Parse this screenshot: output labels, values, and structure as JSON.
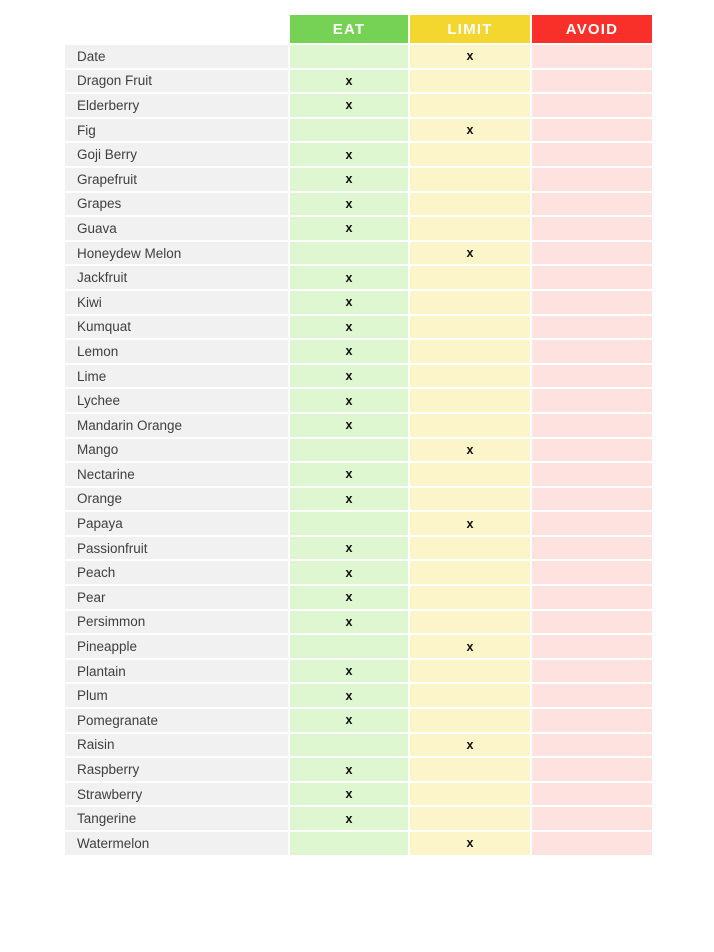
{
  "chart_data": {
    "type": "table",
    "title": "",
    "mark": "x",
    "label_column_bg": "#f1f1f1",
    "columns": [
      {
        "key": "eat",
        "label": "EAT",
        "header_color": "#76d254",
        "cell_color": "#def7d0"
      },
      {
        "key": "limit",
        "label": "LIMIT",
        "header_color": "#f3d62e",
        "cell_color": "#fcf5ca"
      },
      {
        "key": "avoid",
        "label": "AVOID",
        "header_color": "#f93029",
        "cell_color": "#fde2df"
      }
    ],
    "rows": [
      {
        "fruit": "Date",
        "category": "LIMIT"
      },
      {
        "fruit": "Dragon Fruit",
        "category": "EAT"
      },
      {
        "fruit": "Elderberry",
        "category": "EAT"
      },
      {
        "fruit": "Fig",
        "category": "LIMIT"
      },
      {
        "fruit": "Goji Berry",
        "category": "EAT"
      },
      {
        "fruit": "Grapefruit",
        "category": "EAT"
      },
      {
        "fruit": "Grapes",
        "category": "EAT"
      },
      {
        "fruit": "Guava",
        "category": "EAT"
      },
      {
        "fruit": "Honeydew Melon",
        "category": "LIMIT"
      },
      {
        "fruit": "Jackfruit",
        "category": "EAT"
      },
      {
        "fruit": "Kiwi",
        "category": "EAT"
      },
      {
        "fruit": "Kumquat",
        "category": "EAT"
      },
      {
        "fruit": "Lemon",
        "category": "EAT"
      },
      {
        "fruit": "Lime",
        "category": "EAT"
      },
      {
        "fruit": "Lychee",
        "category": "EAT"
      },
      {
        "fruit": "Mandarin Orange",
        "category": "EAT"
      },
      {
        "fruit": "Mango",
        "category": "LIMIT"
      },
      {
        "fruit": "Nectarine",
        "category": "EAT"
      },
      {
        "fruit": "Orange",
        "category": "EAT"
      },
      {
        "fruit": "Papaya",
        "category": "LIMIT"
      },
      {
        "fruit": "Passionfruit",
        "category": "EAT"
      },
      {
        "fruit": "Peach",
        "category": "EAT"
      },
      {
        "fruit": "Pear",
        "category": "EAT"
      },
      {
        "fruit": "Persimmon",
        "category": "EAT"
      },
      {
        "fruit": "Pineapple",
        "category": "LIMIT"
      },
      {
        "fruit": "Plantain",
        "category": "EAT"
      },
      {
        "fruit": "Plum",
        "category": "EAT"
      },
      {
        "fruit": "Pomegranate",
        "category": "EAT"
      },
      {
        "fruit": "Raisin",
        "category": "LIMIT"
      },
      {
        "fruit": "Raspberry",
        "category": "EAT"
      },
      {
        "fruit": "Strawberry",
        "category": "EAT"
      },
      {
        "fruit": "Tangerine",
        "category": "EAT"
      },
      {
        "fruit": "Watermelon",
        "category": "LIMIT"
      }
    ]
  }
}
